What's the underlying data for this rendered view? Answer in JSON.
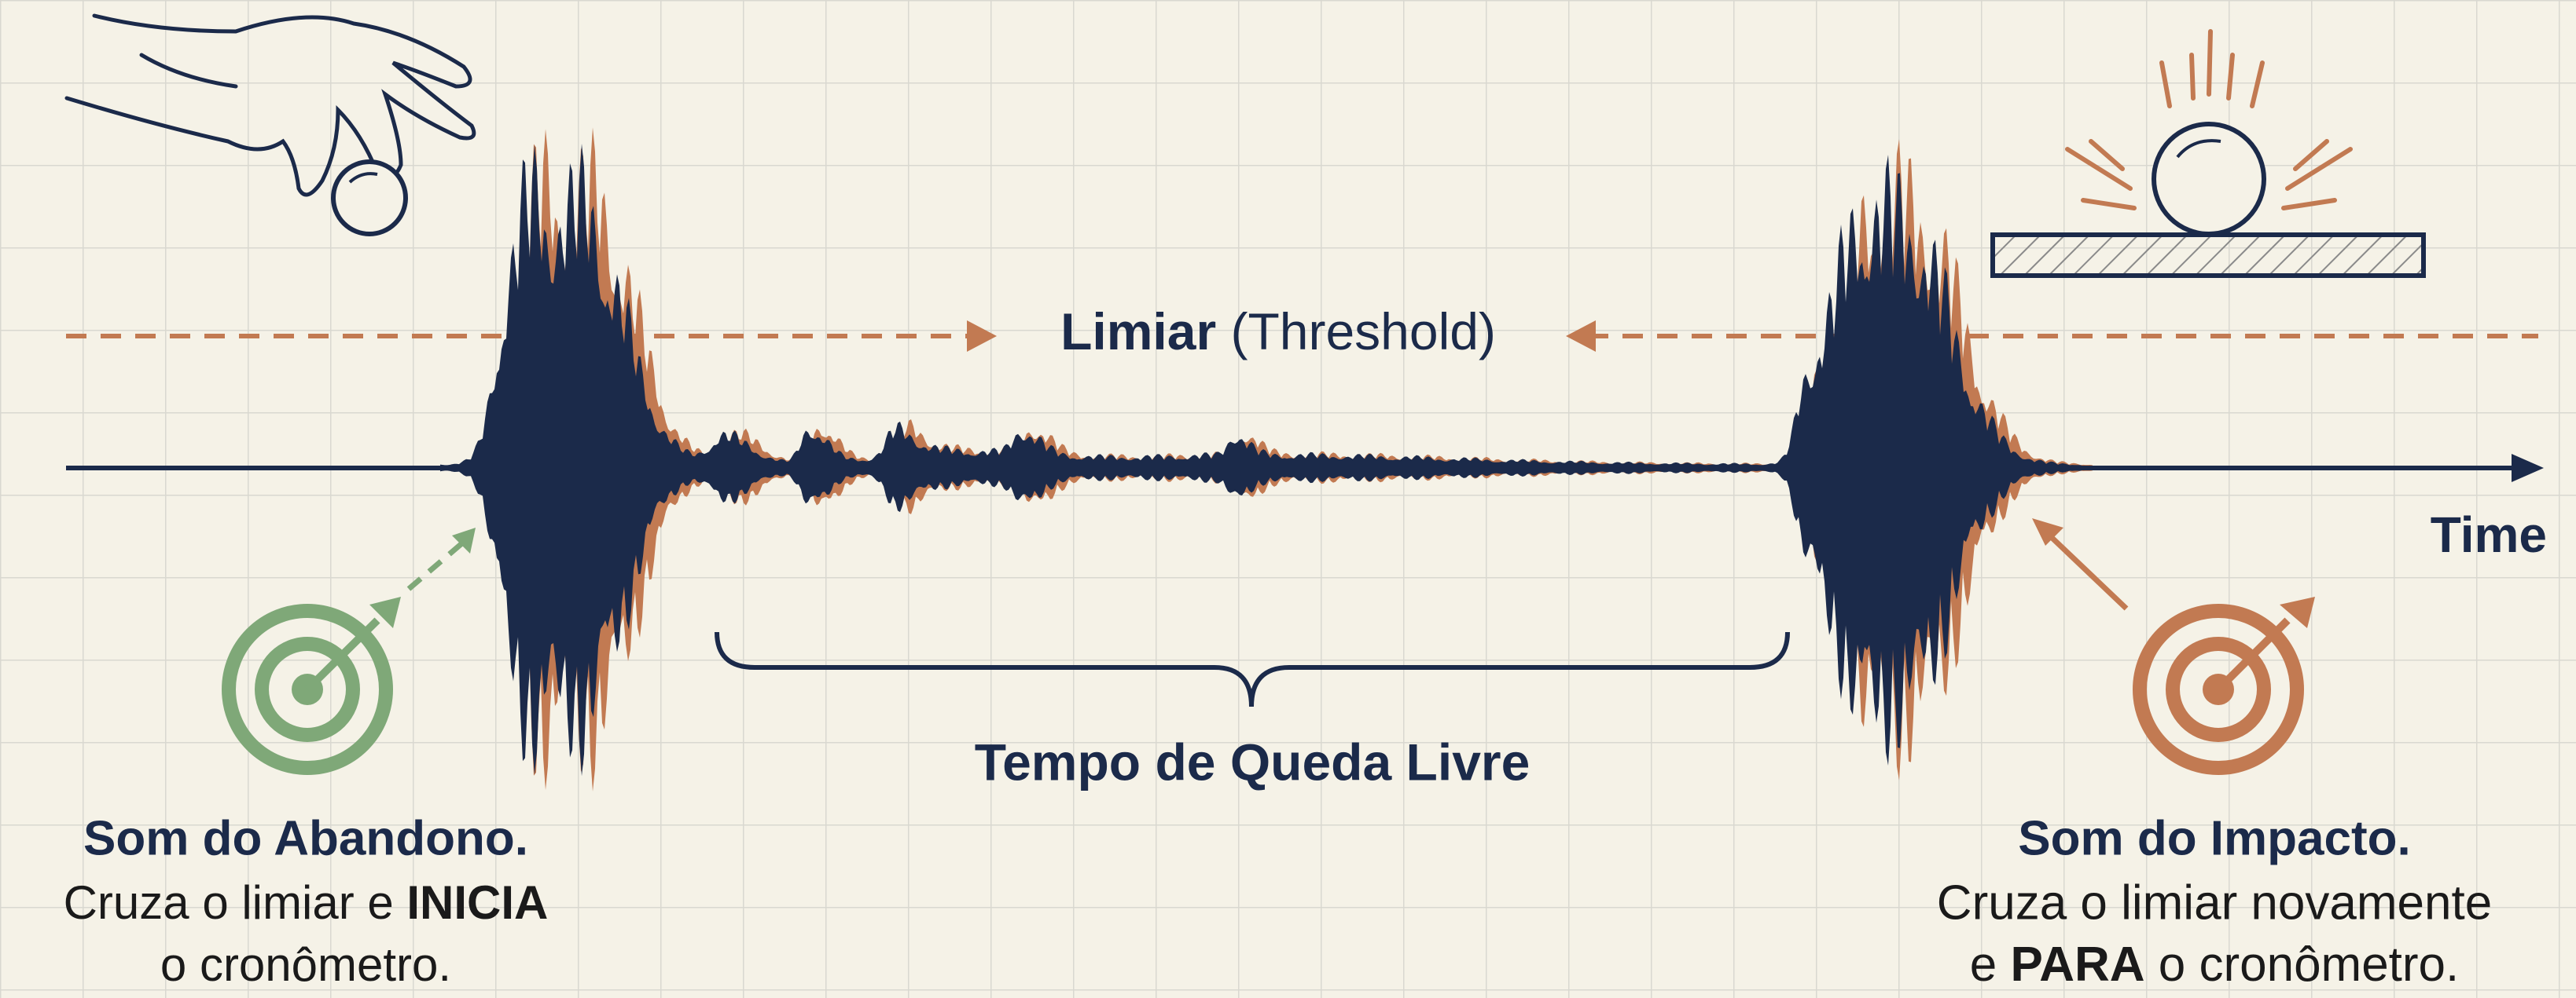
{
  "threshold_label": {
    "term": "Limiar",
    "note": "(Threshold)"
  },
  "axis_label": "Time",
  "interval_label": "Tempo de Queda Livre",
  "start_event": {
    "title": "Som do Abandono.",
    "line1": "Cruza o limiar e",
    "action": "INICIA",
    "line2": "o cronômetro."
  },
  "end_event": {
    "title": "Som do Impacto.",
    "line1": "Cruza o limiar novamente",
    "prefix": "e",
    "action": "PARA",
    "line2": "o cronômetro."
  }
}
